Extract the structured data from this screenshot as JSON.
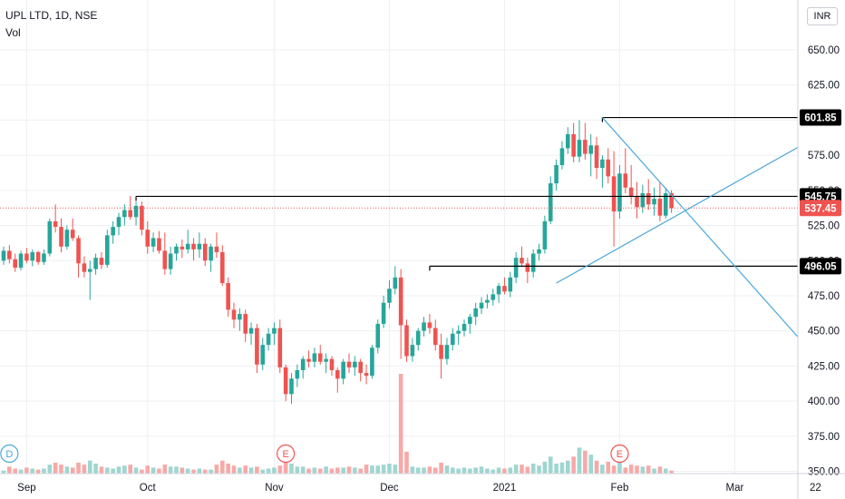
{
  "header": {
    "title": "UPL LTD, 1D, NSE",
    "sub": "Vol"
  },
  "currency_button": {
    "label": "INR"
  },
  "colors": {
    "up": "#26a69a",
    "down": "#ef5350",
    "vol_up": "#9fd6d0",
    "vol_down": "#f7a9a7",
    "trend_line": "#4aa8d8",
    "level_line": "#000000",
    "price_line": "#ef5350",
    "grid": "#eef0f3"
  },
  "chart_data": {
    "type": "candlestick",
    "title": "UPL LTD, 1D, NSE",
    "y_axis": {
      "range": [
        350,
        675
      ],
      "ticks": [
        650,
        625,
        600,
        575,
        550,
        525,
        500,
        475,
        450,
        425,
        400,
        375,
        350
      ],
      "tick_labels": [
        "650.00",
        "625.00",
        "600.00",
        "575.00",
        "550.00",
        "525.00",
        "500.00",
        "475.00",
        "450.00",
        "425.00",
        "400.00",
        "375.00",
        "350.00"
      ]
    },
    "x_axis": {
      "labels": [
        {
          "label": "Sep",
          "bar": 4
        },
        {
          "label": "Oct",
          "bar": 25
        },
        {
          "label": "Nov",
          "bar": 47
        },
        {
          "label": "Dec",
          "bar": 67
        },
        {
          "label": "2021",
          "bar": 87
        },
        {
          "label": "Feb",
          "bar": 107
        },
        {
          "label": "Mar",
          "bar": 127
        },
        {
          "label": "22",
          "bar": 141
        }
      ]
    },
    "last_price": {
      "value": 537.45,
      "label": "537.45"
    },
    "levels": [
      {
        "value": 601.85,
        "label": "601.85",
        "from_bar": 104
      },
      {
        "value": 545.75,
        "label": "545.75",
        "from_bar": 23
      },
      {
        "value": 496.05,
        "label": "496.05",
        "from_bar": 74
      }
    ],
    "trend_lines": [
      {
        "from": {
          "bar": 104,
          "price": 601.85
        },
        "to": {
          "bar": 145.5,
          "price": 411
        }
      },
      {
        "from": {
          "bar": 96,
          "price": 484
        },
        "to": {
          "bar": 145.5,
          "price": 598
        }
      }
    ],
    "event_markers": [
      {
        "label": "D",
        "bar": 1
      },
      {
        "label": "E",
        "bar": 49
      },
      {
        "label": "E",
        "bar": 107
      }
    ],
    "candles": [
      [
        500,
        510,
        497,
        507
      ],
      [
        507,
        511,
        498,
        501
      ],
      [
        501,
        505,
        492,
        495
      ],
      [
        495,
        507,
        493,
        505
      ],
      [
        505,
        509,
        498,
        500
      ],
      [
        500,
        508,
        496,
        506
      ],
      [
        506,
        507,
        497,
        499
      ],
      [
        499,
        508,
        497,
        505
      ],
      [
        505,
        530,
        503,
        528
      ],
      [
        528,
        540,
        520,
        524
      ],
      [
        524,
        530,
        506,
        510
      ],
      [
        510,
        525,
        508,
        522
      ],
      [
        522,
        530,
        514,
        516
      ],
      [
        516,
        518,
        488,
        498
      ],
      [
        498,
        503,
        488,
        492
      ],
      [
        492,
        500,
        472,
        494
      ],
      [
        494,
        505,
        490,
        502
      ],
      [
        502,
        506,
        494,
        497
      ],
      [
        497,
        522,
        495,
        518
      ],
      [
        518,
        528,
        512,
        524
      ],
      [
        524,
        534,
        518,
        531
      ],
      [
        531,
        540,
        525,
        536
      ],
      [
        536,
        546,
        529,
        531
      ],
      [
        531,
        542,
        525,
        539
      ],
      [
        539,
        542,
        518,
        522
      ],
      [
        522,
        528,
        505,
        510
      ],
      [
        510,
        520,
        506,
        516
      ],
      [
        516,
        521,
        505,
        507
      ],
      [
        507,
        520,
        490,
        494
      ],
      [
        494,
        510,
        490,
        505
      ],
      [
        505,
        512,
        500,
        510
      ],
      [
        510,
        515,
        502,
        508
      ],
      [
        508,
        522,
        505,
        512
      ],
      [
        512,
        516,
        500,
        508
      ],
      [
        508,
        520,
        502,
        512
      ],
      [
        512,
        516,
        496,
        500
      ],
      [
        500,
        512,
        492,
        510
      ],
      [
        510,
        520,
        502,
        506
      ],
      [
        506,
        511,
        482,
        484
      ],
      [
        484,
        488,
        460,
        465
      ],
      [
        465,
        470,
        452,
        458
      ],
      [
        458,
        466,
        450,
        462
      ],
      [
        462,
        465,
        442,
        448
      ],
      [
        448,
        456,
        440,
        452
      ],
      [
        452,
        455,
        420,
        426
      ],
      [
        426,
        445,
        422,
        440
      ],
      [
        440,
        452,
        436,
        448
      ],
      [
        448,
        456,
        440,
        452
      ],
      [
        452,
        458,
        420,
        424
      ],
      [
        424,
        426,
        400,
        405
      ],
      [
        405,
        420,
        398,
        416
      ],
      [
        416,
        426,
        410,
        422
      ],
      [
        422,
        432,
        416,
        430
      ],
      [
        430,
        436,
        424,
        428
      ],
      [
        428,
        438,
        424,
        434
      ],
      [
        434,
        440,
        426,
        428
      ],
      [
        428,
        434,
        420,
        430
      ],
      [
        430,
        432,
        418,
        422
      ],
      [
        422,
        424,
        406,
        416
      ],
      [
        416,
        430,
        412,
        428
      ],
      [
        428,
        434,
        420,
        424
      ],
      [
        424,
        432,
        418,
        428
      ],
      [
        428,
        430,
        414,
        420
      ],
      [
        420,
        426,
        412,
        418
      ],
      [
        418,
        440,
        416,
        438
      ],
      [
        438,
        458,
        434,
        455
      ],
      [
        455,
        475,
        452,
        470
      ],
      [
        470,
        486,
        466,
        480
      ],
      [
        480,
        496,
        476,
        488
      ],
      [
        488,
        494,
        430,
        454
      ],
      [
        454,
        458,
        428,
        432
      ],
      [
        432,
        445,
        428,
        440
      ],
      [
        440,
        452,
        436,
        450
      ],
      [
        450,
        460,
        446,
        456
      ],
      [
        456,
        462,
        448,
        452
      ],
      [
        452,
        458,
        436,
        440
      ],
      [
        440,
        448,
        416,
        430
      ],
      [
        430,
        445,
        426,
        440
      ],
      [
        440,
        452,
        436,
        448
      ],
      [
        448,
        454,
        440,
        450
      ],
      [
        450,
        458,
        446,
        455
      ],
      [
        455,
        462,
        448,
        460
      ],
      [
        460,
        470,
        454,
        466
      ],
      [
        466,
        474,
        462,
        470
      ],
      [
        470,
        476,
        466,
        472
      ],
      [
        472,
        480,
        468,
        476
      ],
      [
        476,
        484,
        470,
        482
      ],
      [
        482,
        488,
        476,
        478
      ],
      [
        478,
        492,
        474,
        488
      ],
      [
        488,
        506,
        484,
        502
      ],
      [
        502,
        510,
        496,
        498
      ],
      [
        498,
        502,
        484,
        492
      ],
      [
        492,
        508,
        488,
        505
      ],
      [
        505,
        512,
        500,
        508
      ],
      [
        508,
        532,
        505,
        528
      ],
      [
        528,
        560,
        526,
        555
      ],
      [
        555,
        572,
        550,
        568
      ],
      [
        568,
        585,
        565,
        580
      ],
      [
        580,
        595,
        576,
        590
      ],
      [
        590,
        598,
        570,
        574
      ],
      [
        574,
        600,
        570,
        586
      ],
      [
        586,
        598,
        572,
        576
      ],
      [
        576,
        590,
        560,
        582
      ],
      [
        582,
        588,
        558,
        566
      ],
      [
        566,
        575,
        552,
        572
      ],
      [
        572,
        580,
        555,
        560
      ],
      [
        560,
        578,
        510,
        535
      ],
      [
        535,
        568,
        530,
        562
      ],
      [
        562,
        580,
        548,
        552
      ],
      [
        552,
        568,
        540,
        546
      ],
      [
        546,
        556,
        530,
        538
      ],
      [
        538,
        554,
        534,
        548
      ],
      [
        548,
        558,
        536,
        540
      ],
      [
        540,
        552,
        532,
        544
      ],
      [
        544,
        556,
        528,
        532
      ],
      [
        532,
        552,
        530,
        548
      ],
      [
        548,
        550,
        534,
        537.45
      ]
    ],
    "volume_pct": [
      3,
      7,
      5,
      4,
      6,
      5,
      4,
      5,
      9,
      11,
      9,
      7,
      6,
      11,
      9,
      13,
      10,
      7,
      6,
      5,
      7,
      8,
      9,
      6,
      4,
      8,
      6,
      5,
      9,
      7,
      7,
      6,
      5,
      4,
      5,
      4,
      4,
      9,
      13,
      10,
      8,
      6,
      8,
      6,
      7,
      4,
      5,
      6,
      8,
      16,
      10,
      7,
      7,
      5,
      6,
      5,
      7,
      5,
      6,
      6,
      7,
      6,
      5,
      9,
      8,
      8,
      9,
      10,
      9,
      100,
      22,
      7,
      6,
      6,
      7,
      6,
      11,
      8,
      6,
      5,
      6,
      5,
      6,
      7,
      5,
      4,
      6,
      5,
      6,
      9,
      9,
      7,
      10,
      8,
      12,
      17,
      10,
      11,
      13,
      17,
      26,
      23,
      19,
      13,
      9,
      12,
      8,
      14,
      6,
      9,
      8,
      7,
      8,
      5,
      7,
      5,
      3
    ],
    "volume_max_px": 110
  }
}
